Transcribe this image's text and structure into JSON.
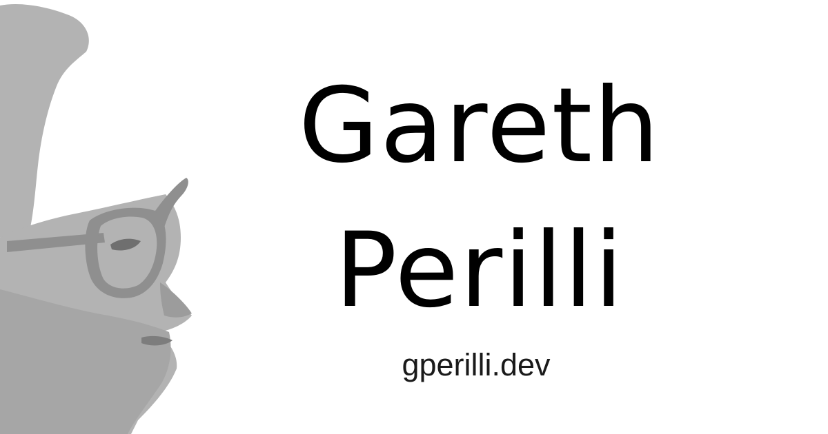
{
  "profile": {
    "first_name": "Gareth",
    "last_name": "Perilli",
    "website": "gperilli.dev"
  },
  "portrait": {
    "icon": "portrait-illustration",
    "tone_color": "#b3b3b3",
    "dark_color": "#8f8f8f"
  },
  "colors": {
    "background": "#ffffff",
    "text": "#000000"
  }
}
